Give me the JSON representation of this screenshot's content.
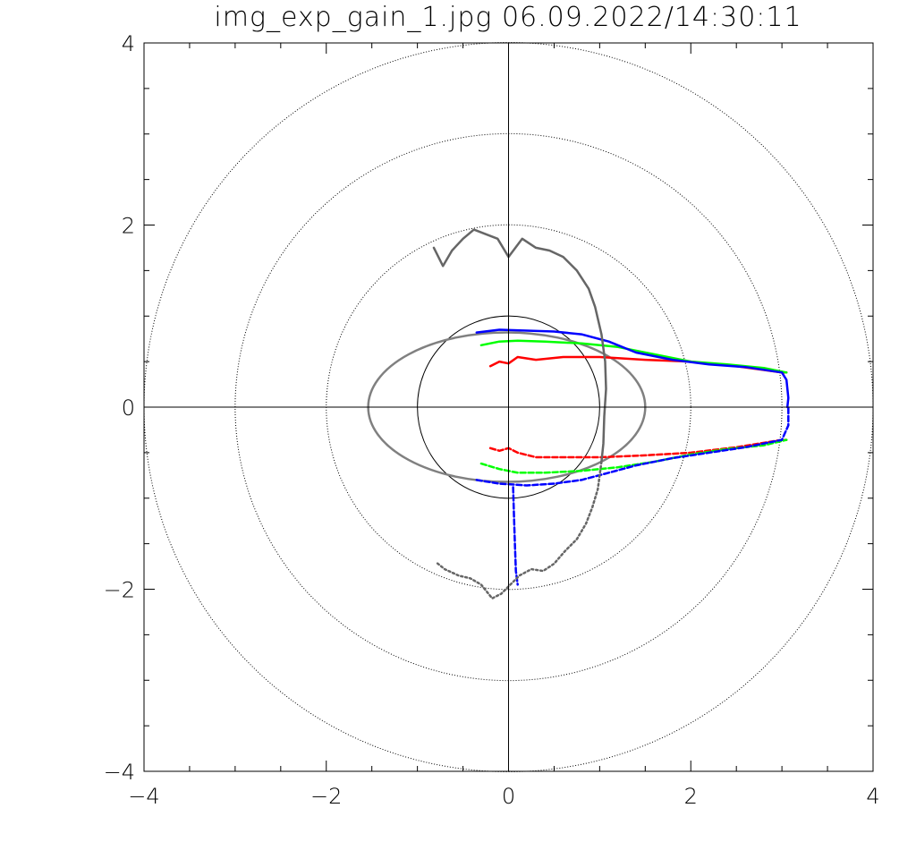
{
  "title": "img_exp_gain_1.jpg  06.09.2022/14:30:11",
  "colors": {
    "background": "#ffffff",
    "axes": "#000000",
    "red": "#ff0000",
    "green": "#00ff00",
    "blue": "#0000ff",
    "gray_curve": "#666666",
    "gray_ellipse": "#808080",
    "ref_circles": "#000000"
  },
  "chart_data": {
    "type": "line",
    "title": "img_exp_gain_1.jpg  06.09.2022/14:30:11",
    "xlabel": "",
    "ylabel": "",
    "xlim": [
      -4,
      4
    ],
    "ylim": [
      -4,
      4
    ],
    "x_ticks": [
      -4,
      -2,
      0,
      2,
      4
    ],
    "y_ticks": [
      -4,
      -2,
      0,
      2,
      4
    ],
    "x_tick_labels": [
      "−4",
      "−2",
      "0",
      "2",
      "4"
    ],
    "y_tick_labels": [
      "−4",
      "−2",
      "0",
      "2",
      "4"
    ],
    "minor_tick_step": 0.5,
    "grid": false,
    "crosshair_at_origin": true,
    "reference_circles": [
      {
        "radius": 1,
        "style": "solid"
      },
      {
        "radius": 2,
        "style": "dotted"
      },
      {
        "radius": 3,
        "style": "dotted"
      },
      {
        "radius": 4,
        "style": "dotted"
      }
    ],
    "ellipse": {
      "center": [
        -0.02,
        0
      ],
      "rx": 1.52,
      "ry": 0.82
    },
    "series": [
      {
        "color": "red",
        "style": "solid",
        "x": [
          -0.2,
          -0.1,
          0.0,
          0.1,
          0.3,
          0.6,
          1.0,
          1.5,
          2.0,
          2.5,
          3.0,
          3.05
        ],
        "y": [
          0.45,
          0.5,
          0.48,
          0.55,
          0.52,
          0.55,
          0.55,
          0.52,
          0.5,
          0.45,
          0.38,
          0.38
        ]
      },
      {
        "color": "green",
        "style": "solid",
        "x": [
          -0.3,
          -0.1,
          0.1,
          0.4,
          0.8,
          1.2,
          1.6,
          2.0,
          2.4,
          2.8,
          3.05
        ],
        "y": [
          0.68,
          0.72,
          0.73,
          0.72,
          0.7,
          0.66,
          0.58,
          0.5,
          0.47,
          0.43,
          0.38
        ]
      },
      {
        "color": "blue",
        "style": "solid",
        "x": [
          -0.35,
          -0.1,
          0.2,
          0.5,
          0.8,
          1.1,
          1.4,
          1.8,
          2.2,
          2.6,
          3.0,
          3.05,
          3.07,
          3.06
        ],
        "y": [
          0.82,
          0.85,
          0.84,
          0.83,
          0.8,
          0.72,
          0.6,
          0.52,
          0.47,
          0.44,
          0.38,
          0.3,
          0.1,
          0.0
        ]
      },
      {
        "color": "red",
        "style": "dashed",
        "x": [
          -0.2,
          -0.1,
          0.0,
          0.1,
          0.3,
          0.6,
          1.0,
          1.5,
          2.0,
          2.5,
          3.0,
          3.05
        ],
        "y": [
          -0.45,
          -0.48,
          -0.45,
          -0.5,
          -0.55,
          -0.55,
          -0.55,
          -0.53,
          -0.5,
          -0.44,
          -0.36,
          -0.36
        ]
      },
      {
        "color": "green",
        "style": "dashed",
        "x": [
          -0.3,
          -0.1,
          0.1,
          0.4,
          0.8,
          1.2,
          1.6,
          2.0,
          2.4,
          2.8,
          3.05
        ],
        "y": [
          -0.62,
          -0.68,
          -0.72,
          -0.72,
          -0.7,
          -0.66,
          -0.6,
          -0.52,
          -0.46,
          -0.42,
          -0.36
        ]
      },
      {
        "color": "blue",
        "style": "dashed",
        "x": [
          -0.35,
          -0.1,
          0.2,
          0.5,
          0.8,
          1.1,
          1.4,
          1.8,
          2.2,
          2.6,
          3.0,
          3.07,
          3.07
        ],
        "y": [
          -0.8,
          -0.84,
          -0.86,
          -0.84,
          -0.8,
          -0.72,
          -0.64,
          -0.56,
          -0.5,
          -0.44,
          -0.36,
          -0.2,
          0.0
        ]
      },
      {
        "color": "blue",
        "style": "dashed",
        "x": [
          0.05,
          0.06,
          0.07,
          0.08,
          0.1
        ],
        "y": [
          -0.88,
          -1.2,
          -1.5,
          -1.8,
          -1.95
        ]
      },
      {
        "color": "gray_curve",
        "style": "solid",
        "x": [
          -0.82,
          -0.72,
          -0.62,
          -0.5,
          -0.38,
          -0.25,
          -0.12,
          0.0,
          0.15,
          0.3,
          0.45,
          0.6,
          0.75,
          0.88,
          0.95,
          1.02,
          1.06,
          1.07,
          1.05,
          1.04,
          1.02
        ],
        "y": [
          1.75,
          1.55,
          1.72,
          1.85,
          1.95,
          1.9,
          1.85,
          1.65,
          1.85,
          1.75,
          1.72,
          1.65,
          1.5,
          1.3,
          1.1,
          0.8,
          0.5,
          0.2,
          -0.1,
          -0.4,
          -0.6
        ]
      },
      {
        "color": "gray_curve",
        "style": "dotted",
        "x": [
          1.02,
          0.98,
          0.92,
          0.85,
          0.75,
          0.62,
          0.5,
          0.38,
          0.25,
          0.12,
          0.02,
          -0.08,
          -0.18,
          -0.3,
          -0.42,
          -0.55,
          -0.7,
          -0.8
        ],
        "y": [
          -0.6,
          -0.9,
          -1.1,
          -1.28,
          -1.45,
          -1.58,
          -1.72,
          -1.8,
          -1.78,
          -1.85,
          -1.95,
          -2.05,
          -2.1,
          -1.95,
          -1.88,
          -1.85,
          -1.78,
          -1.7
        ]
      }
    ]
  }
}
